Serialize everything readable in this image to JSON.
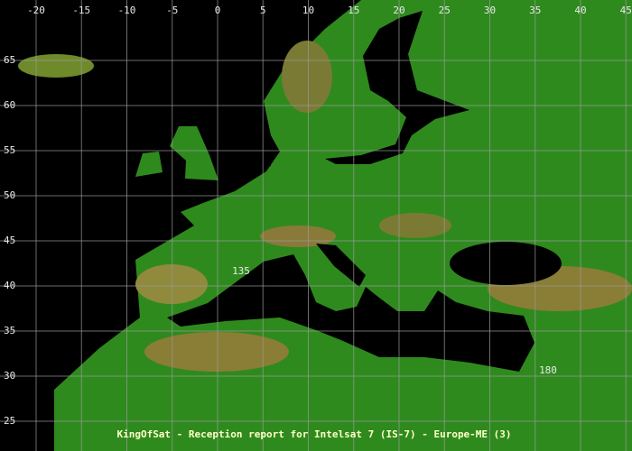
{
  "map": {
    "lon_ticks": [
      -20,
      -15,
      -10,
      -5,
      0,
      5,
      10,
      15,
      20,
      25,
      30,
      35,
      40,
      45
    ],
    "lat_ticks": [
      65,
      60,
      55,
      50,
      45,
      40,
      35,
      30,
      25
    ],
    "contour_labels": [
      135,
      180
    ],
    "title": "KingOfSat - Reception report for Intelsat 7 (IS-7) - Europe-ME (3)"
  }
}
